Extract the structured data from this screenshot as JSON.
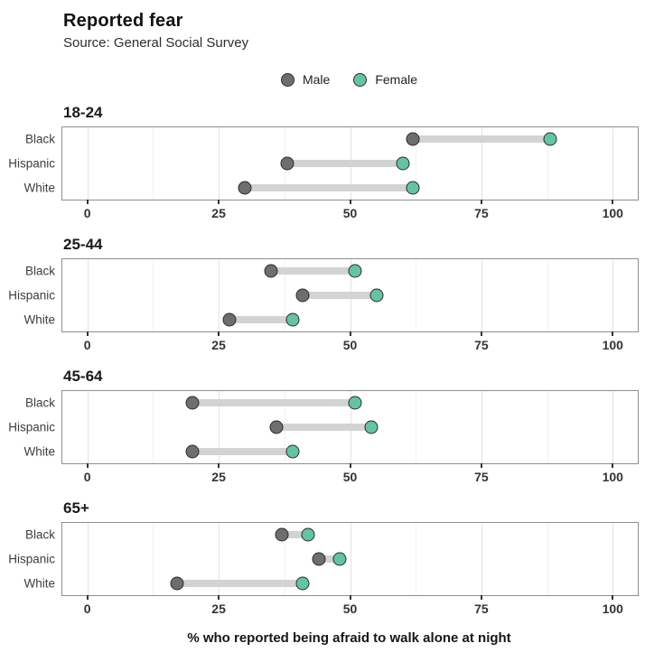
{
  "colors": {
    "male": "#6e6e6e",
    "female": "#66c2a5",
    "dotStroke": "#2b2b2b",
    "segment": "#d3d3d3",
    "gridMajor": "#e3e3e3",
    "gridMinor": "#f1f1f1",
    "panelBorder": "#8f8f8f"
  },
  "chart_data": {
    "type": "scatter",
    "subtype": "dumbbell",
    "title": "Reported fear",
    "subtitle": "Source: General Social Survey",
    "xlabel": "% who reported being afraid to walk alone at night",
    "xlim": [
      0,
      100
    ],
    "x_ticks": [
      0,
      25,
      50,
      75,
      100
    ],
    "x_minor_gridlines": [
      12.5,
      37.5,
      62.5,
      87.5
    ],
    "grid": "vertical-only",
    "legend_position": "top-center",
    "series_names": [
      "Male",
      "Female"
    ],
    "facets": [
      {
        "title": "18-24",
        "categories": [
          "Black",
          "Hispanic",
          "White"
        ],
        "series": [
          {
            "name": "Male",
            "values": [
              62,
              38,
              30
            ]
          },
          {
            "name": "Female",
            "values": [
              88,
              60,
              62
            ]
          }
        ]
      },
      {
        "title": "25-44",
        "categories": [
          "Black",
          "Hispanic",
          "White"
        ],
        "series": [
          {
            "name": "Male",
            "values": [
              35,
              41,
              27
            ]
          },
          {
            "name": "Female",
            "values": [
              51,
              55,
              39
            ]
          }
        ]
      },
      {
        "title": "45-64",
        "categories": [
          "Black",
          "Hispanic",
          "White"
        ],
        "series": [
          {
            "name": "Male",
            "values": [
              20,
              36,
              20
            ]
          },
          {
            "name": "Female",
            "values": [
              51,
              54,
              39
            ]
          }
        ]
      },
      {
        "title": "65+",
        "categories": [
          "Black",
          "Hispanic",
          "White"
        ],
        "series": [
          {
            "name": "Male",
            "values": [
              37,
              44,
              17
            ]
          },
          {
            "name": "Female",
            "values": [
              42,
              48,
              41
            ]
          }
        ]
      }
    ]
  }
}
